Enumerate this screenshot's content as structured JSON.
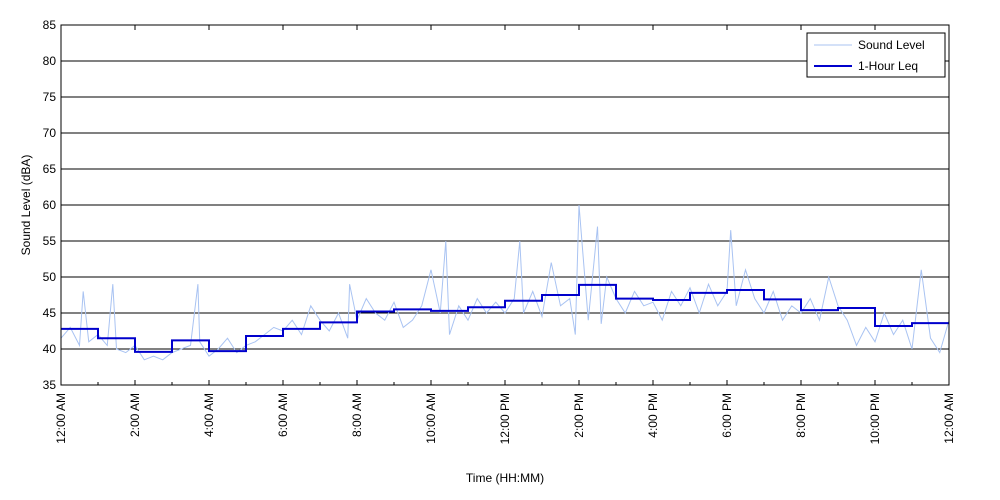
{
  "chart_data": {
    "type": "line",
    "xlabel": "Time (HH:MM)",
    "ylabel": "Sound Level (dBA)",
    "xlim": [
      0,
      24
    ],
    "ylim": [
      35,
      85
    ],
    "y_ticks": [
      35,
      40,
      45,
      50,
      55,
      60,
      65,
      70,
      75,
      80,
      85
    ],
    "x_ticks": [
      0,
      2,
      4,
      6,
      8,
      10,
      12,
      14,
      16,
      18,
      20,
      22,
      24
    ],
    "x_tick_labels": [
      "12:00 AM",
      "2:00 AM",
      "4:00 AM",
      "6:00 AM",
      "8:00 AM",
      "10:00 AM",
      "12:00 PM",
      "2:00 PM",
      "4:00 PM",
      "6:00 PM",
      "8:00 PM",
      "10:00 PM",
      "12:00 AM"
    ],
    "grid": "horizontal",
    "legend_position": "top-right",
    "series": [
      {
        "name": "Sound Level",
        "color": "#a9c3f2",
        "style": "thin-line",
        "x": [
          0.0,
          0.25,
          0.5,
          0.6,
          0.75,
          1.0,
          1.25,
          1.4,
          1.5,
          1.75,
          2.0,
          2.25,
          2.5,
          2.75,
          3.0,
          3.25,
          3.5,
          3.7,
          3.75,
          4.0,
          4.25,
          4.5,
          4.75,
          5.0,
          5.25,
          5.5,
          5.75,
          6.0,
          6.25,
          6.5,
          6.75,
          7.0,
          7.25,
          7.5,
          7.75,
          7.8,
          8.0,
          8.25,
          8.5,
          8.75,
          9.0,
          9.25,
          9.5,
          9.75,
          10.0,
          10.25,
          10.4,
          10.5,
          10.75,
          11.0,
          11.25,
          11.5,
          11.75,
          12.0,
          12.25,
          12.4,
          12.5,
          12.75,
          13.0,
          13.25,
          13.5,
          13.75,
          13.9,
          14.0,
          14.25,
          14.5,
          14.6,
          14.75,
          15.0,
          15.25,
          15.5,
          15.75,
          16.0,
          16.25,
          16.5,
          16.75,
          17.0,
          17.25,
          17.5,
          17.75,
          18.0,
          18.1,
          18.25,
          18.5,
          18.75,
          19.0,
          19.25,
          19.5,
          19.75,
          20.0,
          20.25,
          20.5,
          20.75,
          21.0,
          21.25,
          21.5,
          21.75,
          22.0,
          22.25,
          22.5,
          22.75,
          23.0,
          23.25,
          23.5,
          23.75,
          24.0
        ],
        "y": [
          41.5,
          43.0,
          40.5,
          48.0,
          41.0,
          42.0,
          40.5,
          49.0,
          40.0,
          39.5,
          40.5,
          38.5,
          39.0,
          38.5,
          39.5,
          40.0,
          40.5,
          49.0,
          41.0,
          39.0,
          40.0,
          41.5,
          39.5,
          40.5,
          41.0,
          42.0,
          43.0,
          42.5,
          44.0,
          42.0,
          46.0,
          44.0,
          42.5,
          45.0,
          41.5,
          49.0,
          44.0,
          47.0,
          45.0,
          44.0,
          46.5,
          43.0,
          44.0,
          46.0,
          51.0,
          45.0,
          55.0,
          42.0,
          46.0,
          44.0,
          47.0,
          45.0,
          46.5,
          45.0,
          47.0,
          55.0,
          45.0,
          48.0,
          44.5,
          52.0,
          46.0,
          47.0,
          42.0,
          60.0,
          44.0,
          57.0,
          43.5,
          50.0,
          47.0,
          45.0,
          48.0,
          46.0,
          46.5,
          44.0,
          48.0,
          46.0,
          48.5,
          45.0,
          49.0,
          46.0,
          48.0,
          56.5,
          46.0,
          51.0,
          47.0,
          45.0,
          48.0,
          44.0,
          46.0,
          45.0,
          47.0,
          44.0,
          50.0,
          46.0,
          44.0,
          40.5,
          43.0,
          41.0,
          45.0,
          42.0,
          44.0,
          40.0,
          51.0,
          41.5,
          39.5,
          44.0
        ]
      },
      {
        "name": "1-Hour Leq",
        "color": "#0000cc",
        "style": "step",
        "x": [
          0,
          1,
          2,
          3,
          4,
          5,
          6,
          7,
          8,
          9,
          10,
          11,
          12,
          13,
          14,
          15,
          16,
          17,
          18,
          19,
          20,
          21,
          22,
          23,
          24
        ],
        "y": [
          42.8,
          41.5,
          39.6,
          41.2,
          39.7,
          41.8,
          42.8,
          43.7,
          45.2,
          45.5,
          45.3,
          45.8,
          46.7,
          47.5,
          48.9,
          47.0,
          46.8,
          47.8,
          48.2,
          46.9,
          45.4,
          45.7,
          43.2,
          43.6,
          43.6
        ]
      }
    ]
  }
}
